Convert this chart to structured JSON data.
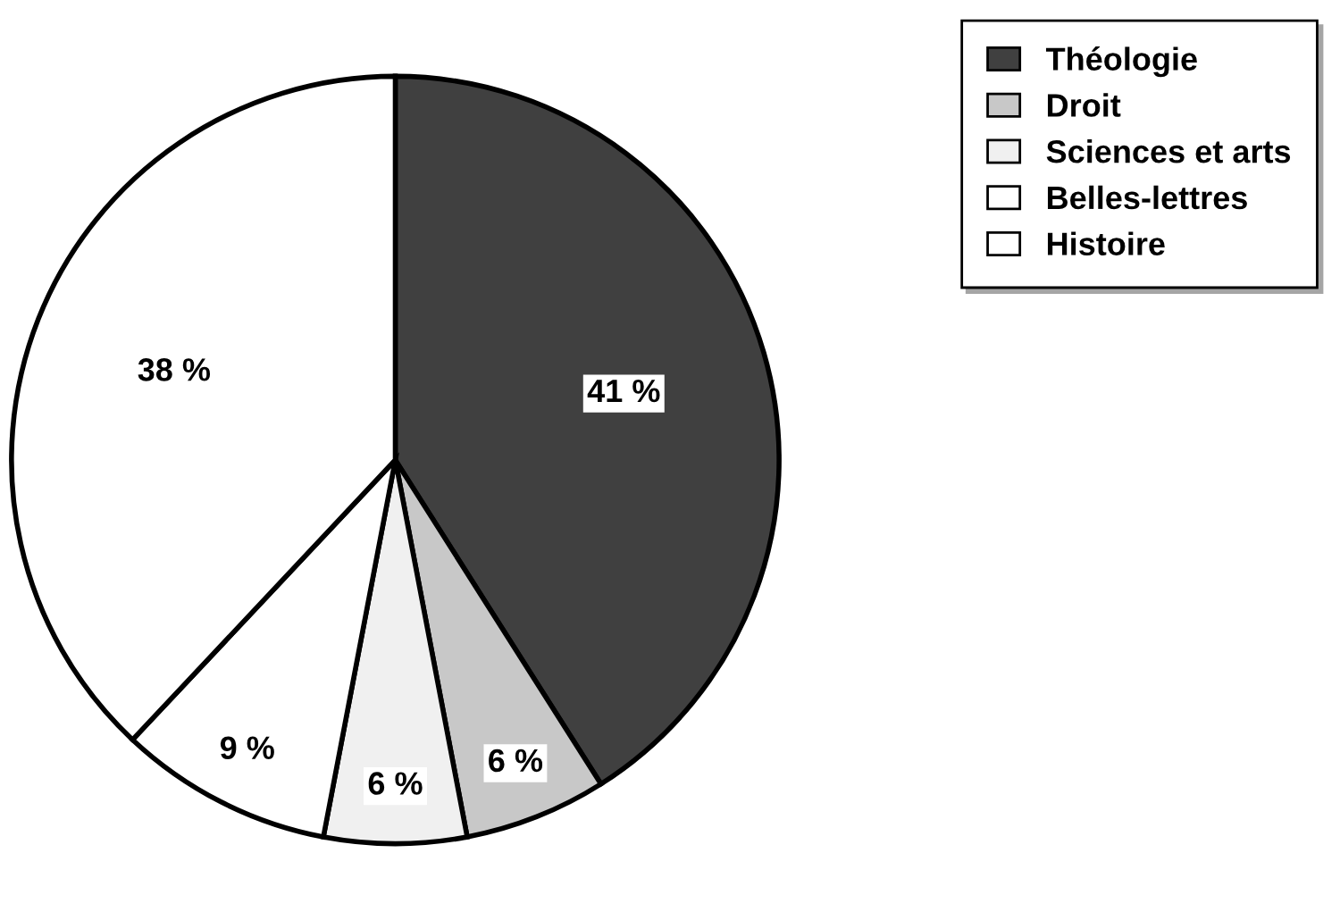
{
  "chart_data": {
    "type": "pie",
    "categories": [
      "Théologie",
      "Droit",
      "Sciences et arts",
      "Belles-lettres",
      "Histoire"
    ],
    "values": [
      41,
      6,
      6,
      9,
      38
    ],
    "colors": [
      "#404040",
      "#c8c8c8",
      "#f0f0f0",
      "#ffffff",
      "#ffffff"
    ],
    "value_labels": [
      "41 %",
      "6 %",
      "6 %",
      "9 %",
      "38 %"
    ],
    "legend": "top right"
  }
}
